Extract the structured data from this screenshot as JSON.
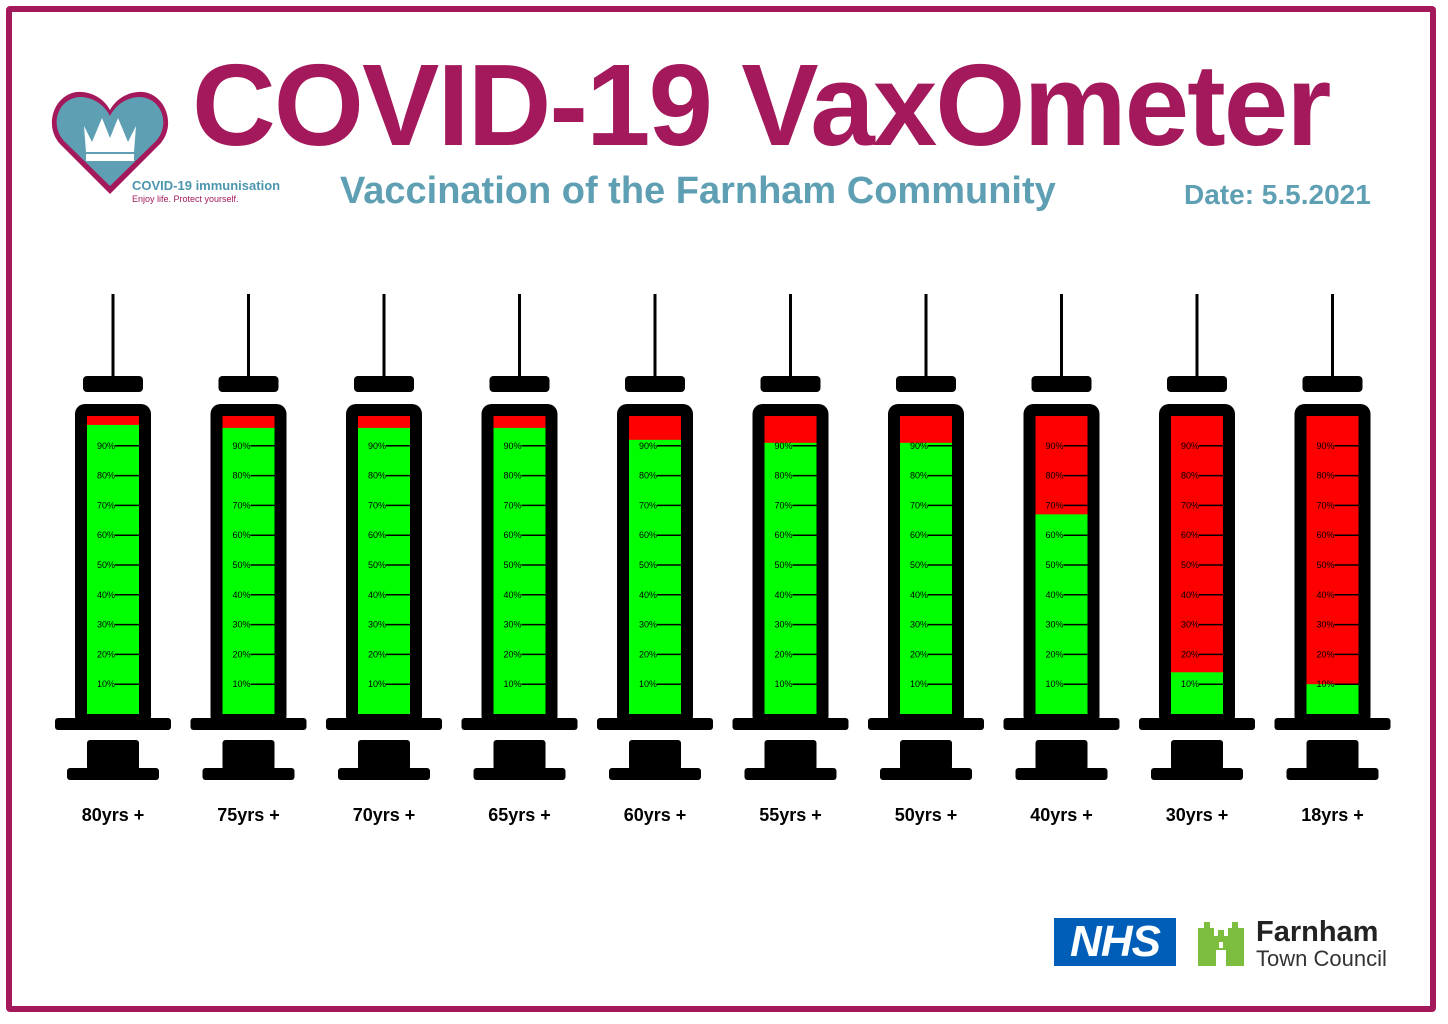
{
  "header": {
    "title": "COVID-19 VaxOmeter",
    "subtitle": "Vaccination of the Farnham Community",
    "date": "Date: 5.5.2021"
  },
  "logo": {
    "text": "COVID-19 immunisation",
    "tagline": "Enjoy life. Protect yourself."
  },
  "footer": {
    "nhs": "NHS",
    "council_name": "Farnham",
    "council_sub": "Town Council"
  },
  "colors": {
    "brand": "#a3195b",
    "subtitle": "#5e9fb4",
    "filled": "#00ff00",
    "remaining": "#ff0000",
    "syringe": "#000000"
  },
  "chart_data": {
    "type": "bar",
    "categories": [
      "80yrs +",
      "75yrs +",
      "70yrs +",
      "65yrs +",
      "60yrs +",
      "55yrs +",
      "50yrs +",
      "40yrs +",
      "30yrs +",
      "18yrs +"
    ],
    "values": [
      97,
      96,
      96,
      96,
      92,
      91,
      91,
      67,
      14,
      10
    ],
    "unit": "%",
    "tick_labels": [
      "10%",
      "20%",
      "30%",
      "40%",
      "50%",
      "60%",
      "70%",
      "80%",
      "90%"
    ],
    "ylim": [
      0,
      100
    ]
  }
}
